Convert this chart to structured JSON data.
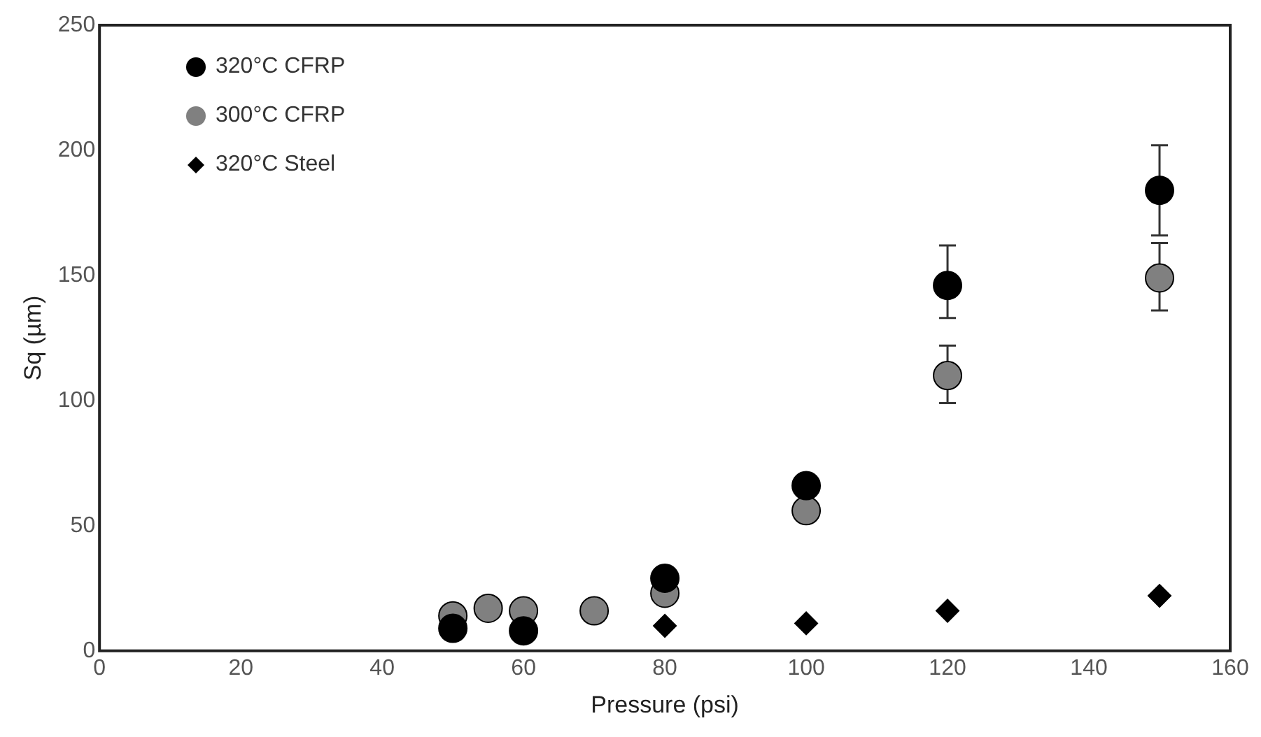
{
  "chart_data": {
    "type": "scatter",
    "xlabel": "Pressure (psi)",
    "ylabel": "Sq (µm)",
    "xlim": [
      0,
      160
    ],
    "xticks": [
      0,
      20,
      40,
      60,
      80,
      100,
      120,
      140,
      160
    ],
    "ylim": [
      0,
      250
    ],
    "yticks": [
      0,
      50,
      100,
      150,
      200,
      250
    ],
    "grid": false,
    "legend": "top left",
    "series": [
      {
        "name": "320°C CFRP",
        "color": "#000000",
        "marker": "circle",
        "x": [
          50,
          60,
          80,
          100,
          120,
          150
        ],
        "values": [
          9,
          8,
          29,
          66,
          146,
          184
        ],
        "errors": [
          null,
          null,
          null,
          null,
          [
            133,
            162
          ],
          [
            166,
            202
          ]
        ]
      },
      {
        "name": "300°C CFRP",
        "color": "#808080",
        "marker": "circle",
        "x": [
          50,
          55,
          60,
          70,
          80,
          100,
          120,
          150
        ],
        "values": [
          14,
          17,
          16,
          16,
          23,
          56,
          110,
          149
        ],
        "errors": [
          null,
          null,
          null,
          null,
          null,
          null,
          [
            99,
            122
          ],
          [
            136,
            163
          ]
        ]
      },
      {
        "name": "320°C Steel",
        "color": "#000000",
        "marker": "diamond",
        "x": [
          80,
          100,
          120,
          150
        ],
        "values": [
          10,
          11,
          16,
          22
        ]
      }
    ]
  }
}
